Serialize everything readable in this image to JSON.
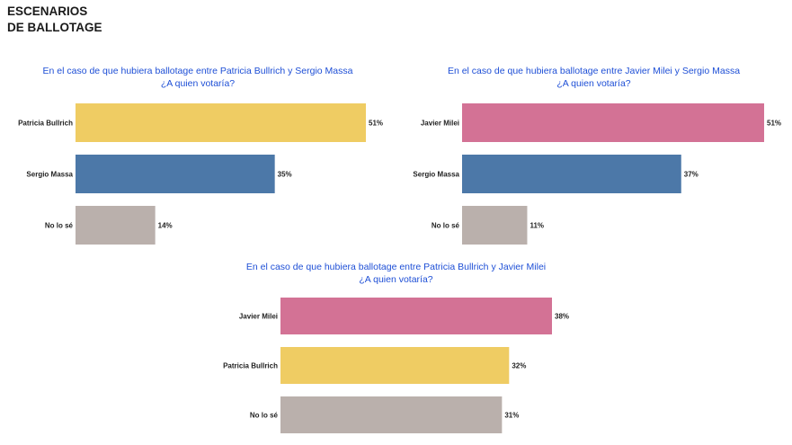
{
  "header": {
    "line1": "ESCENARIOS",
    "line2": "DE BALLOTAGE"
  },
  "colors": {
    "Patricia Bullrich": "#efcc63",
    "Sergio Massa": "#4c78a8",
    "No lo sé": "#bab0ac",
    "Javier Milei": "#d37295"
  },
  "chart_data": [
    {
      "type": "bar",
      "orientation": "horizontal",
      "title": "En el caso de que hubiera ballotage entre Patricia Bullrich y Sergio Massa",
      "subtitle": "¿A quien votaría?",
      "categories": [
        "Patricia Bullrich",
        "Sergio Massa",
        "No lo sé"
      ],
      "values": [
        51,
        35,
        14
      ],
      "value_labels": [
        "51%",
        "35%",
        "14%"
      ],
      "unit": "%",
      "xlim": [
        0,
        52
      ],
      "grid": false
    },
    {
      "type": "bar",
      "orientation": "horizontal",
      "title": "En el caso de que hubiera ballotage entre Javier Milei y Sergio Massa",
      "subtitle": "¿A quien votaría?",
      "categories": [
        "Javier Milei",
        "Sergio Massa",
        "No lo sé"
      ],
      "values": [
        51,
        37,
        11
      ],
      "value_labels": [
        "51%",
        "37%",
        "11%"
      ],
      "unit": "%",
      "xlim": [
        0,
        52
      ],
      "grid": false
    },
    {
      "type": "bar",
      "orientation": "horizontal",
      "title": "En el caso de que hubiera ballotage entre Patricia Bullrich y Javier Milei",
      "subtitle": "¿A quien votaría?",
      "categories": [
        "Javier Milei",
        "Patricia Bullrich",
        "No lo sé"
      ],
      "values": [
        38,
        32,
        31
      ],
      "value_labels": [
        "38%",
        "32%",
        "31%"
      ],
      "unit": "%",
      "xlim": [
        0,
        52
      ],
      "grid": false
    }
  ]
}
